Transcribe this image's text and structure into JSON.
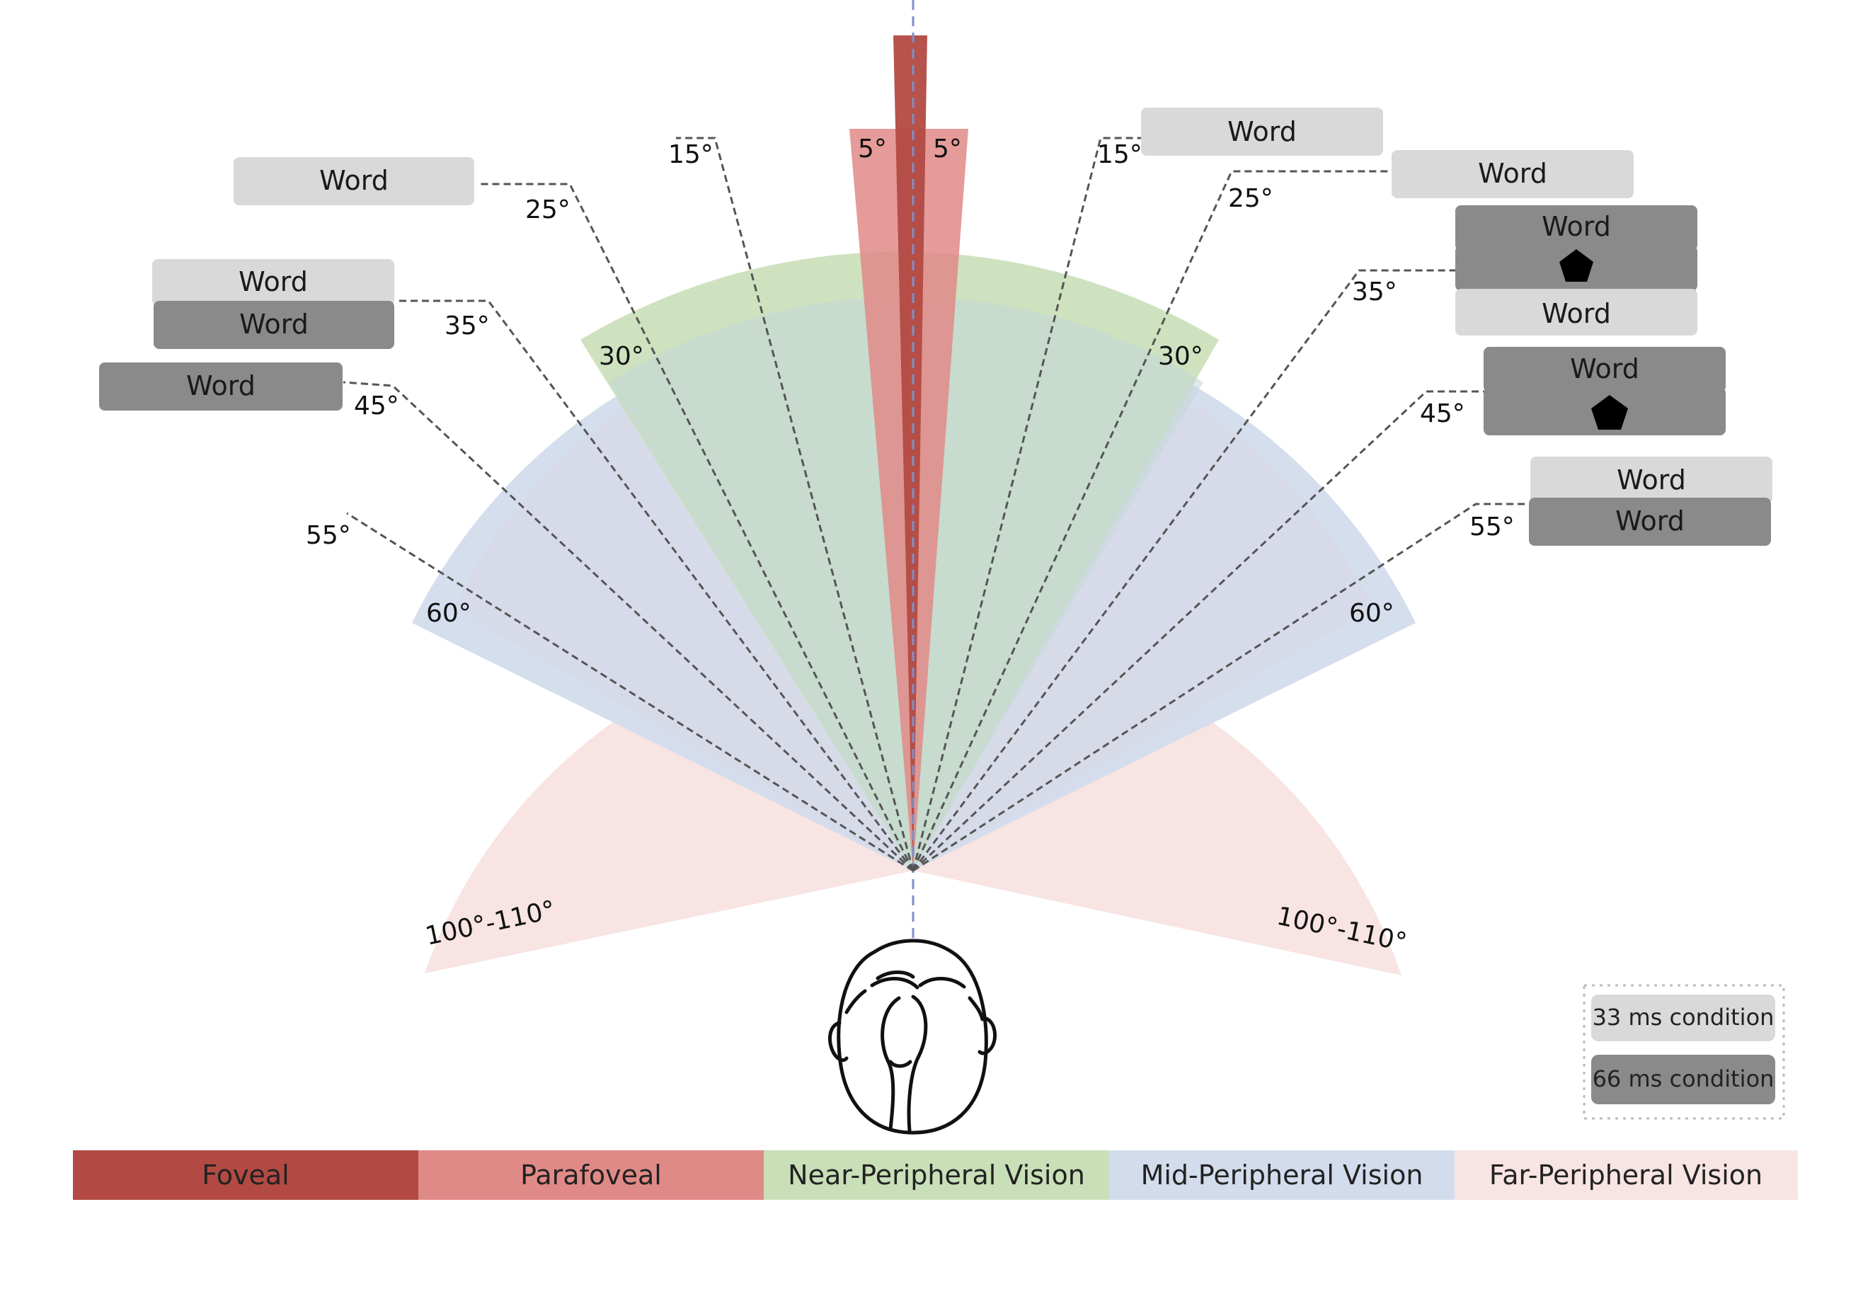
{
  "colors": {
    "foveal": "#b24a43",
    "parafoveal": "#e08a87",
    "near_peripheral": "#c9dfb8",
    "mid_peripheral": "#d3dcec",
    "far_peripheral": "#f7e4e3",
    "word_light": "#d9d9d9",
    "word_dark": "#8a8a8a"
  },
  "sector_labels": {
    "foveal": "",
    "parafoveal_left": "5°",
    "parafoveal_right": "5°",
    "near_left": "30°",
    "near_right": "30°",
    "mid_left": "60°",
    "mid_right": "60°",
    "far_left": "100°-110°",
    "far_right": "100°-110°"
  },
  "rays_left": [
    {
      "label": "15°"
    },
    {
      "label": "25°"
    },
    {
      "label": "35°"
    },
    {
      "label": "45°"
    },
    {
      "label": "55°"
    }
  ],
  "rays_right": [
    {
      "label": "15°"
    },
    {
      "label": "25°"
    },
    {
      "label": "35°"
    },
    {
      "label": "45°"
    },
    {
      "label": "55°"
    }
  ],
  "stimuli_left": [
    {
      "angle": "25°",
      "boxes": [
        {
          "text": "Word",
          "tone": "light"
        }
      ]
    },
    {
      "angle": "35°",
      "boxes": [
        {
          "text": "Word",
          "tone": "light"
        },
        {
          "text": "Word",
          "tone": "dark"
        }
      ]
    },
    {
      "angle": "45°",
      "boxes": [
        {
          "text": "Word",
          "tone": "dark"
        }
      ]
    }
  ],
  "stimuli_right": [
    {
      "angle": "15°",
      "boxes": [
        {
          "text": "Word",
          "tone": "light"
        }
      ]
    },
    {
      "angle": "25°",
      "boxes": [
        {
          "text": "Word",
          "tone": "light"
        }
      ]
    },
    {
      "angle": "35°",
      "boxes": [
        {
          "text": "Word",
          "tone": "dark"
        },
        {
          "text": "pentagon",
          "tone": "dark"
        },
        {
          "text": "Word",
          "tone": "light"
        }
      ]
    },
    {
      "angle": "45°",
      "boxes": [
        {
          "text": "Word",
          "tone": "dark"
        },
        {
          "text": "pentagon",
          "tone": "dark"
        }
      ]
    },
    {
      "angle": "55°",
      "boxes": [
        {
          "text": "Word",
          "tone": "light"
        },
        {
          "text": "Word",
          "tone": "dark"
        }
      ]
    }
  ],
  "legend": {
    "light_label": "33 ms condition",
    "dark_label": "66 ms condition"
  },
  "zones": [
    {
      "label": "Foveal",
      "color": "#b24a43"
    },
    {
      "label": "Parafoveal",
      "color": "#e08a87"
    },
    {
      "label": "Near-Peripheral Vision",
      "color": "#c9dfb8"
    },
    {
      "label": "Mid-Peripheral Vision",
      "color": "#d3dcec"
    },
    {
      "label": "Far-Peripheral Vision",
      "color": "#f7e4e3"
    }
  ],
  "icons": {
    "head": "head-top-view-icon",
    "pentagon": "pentagon-icon"
  }
}
